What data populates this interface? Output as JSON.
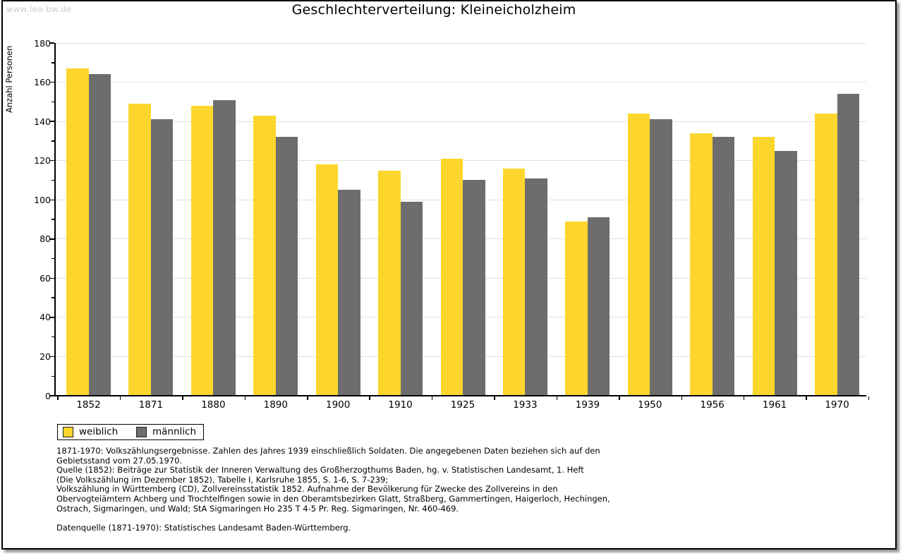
{
  "page": {
    "watermark": "www.leo-bw.de"
  },
  "chart_data": {
    "type": "bar",
    "title": "Geschlechterverteilung: Kleineicholzheim",
    "xlabel": "",
    "ylabel": "Anzahl Personen",
    "ylim": [
      0,
      180
    ],
    "ytick_step": 20,
    "yminor_step": 10,
    "grid": "horizontal",
    "legend_position": "bottom-left",
    "categories": [
      "1852",
      "1871",
      "1880",
      "1890",
      "1900",
      "1910",
      "1925",
      "1933",
      "1939",
      "1950",
      "1956",
      "1961",
      "1970"
    ],
    "series": [
      {
        "name": "weiblich",
        "color": "#FCD62D",
        "values": [
          167,
          149,
          148,
          143,
          118,
          115,
          121,
          116,
          89,
          144,
          134,
          132,
          144
        ]
      },
      {
        "name": "männlich",
        "color": "#6D6D6D",
        "values": [
          164,
          141,
          151,
          132,
          105,
          99,
          110,
          111,
          91,
          141,
          132,
          125,
          154
        ]
      }
    ]
  },
  "footnotes": {
    "lines": [
      "1871-1970: Volkszählungsergebnisse. Zahlen des Jahres 1939 einschließlich Soldaten. Die angegebenen Daten beziehen sich auf den",
      "Gebietsstand vom 27.05.1970.",
      "Quelle (1852): Beiträge zur Statistik der Inneren Verwaltung des Großherzogthums Baden, hg. v. Statistischen Landesamt, 1. Heft",
      "(Die Volkszählung im Dezember 1852), Tabelle I, Karlsruhe 1855, S. 1-6, S. 7-239;",
      "Volkszählung in Württemberg (CD), Zollvereinsstatistik 1852. Aufnahme der Bevölkerung für Zwecke des Zollvereins in den",
      "Obervogteiämtern Achberg und Trochtelfingen sowie in den Oberamtsbezirken Glatt, Straßberg, Gammertingen, Haigerloch, Hechingen,",
      "Ostrach, Sigmaringen, und Wald; StA Sigmaringen Ho 235 T 4-5 Pr. Reg. Sigmaringen, Nr. 460-469."
    ],
    "datasource": "Datenquelle (1871-1970): Statistisches Landesamt Baden-Württemberg."
  },
  "colors": {
    "female_bar": "#FCD62D",
    "male_bar": "#6D6D6D",
    "gridline": "#e0e0e0",
    "watermark": "#c9c9c9",
    "frame_border": "#000000"
  }
}
